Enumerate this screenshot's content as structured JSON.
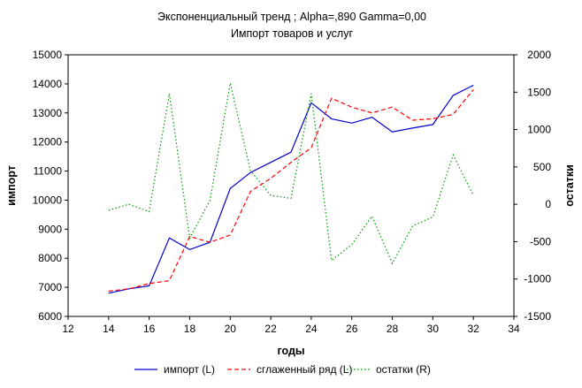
{
  "chart_data": {
    "type": "line",
    "title": "Экспоненциальный тренд ; Alpha=,890 Gamma=0,00",
    "subtitle": "Импорт товаров и услуг",
    "xlabel": "годы",
    "ylabel_left": "импорт",
    "ylabel_right": "остатки",
    "xlim": [
      12,
      34
    ],
    "x_ticks": [
      "12",
      "14",
      "16",
      "18",
      "20",
      "22",
      "24",
      "26",
      "28",
      "30",
      "32",
      "34"
    ],
    "ylim_left": [
      6000,
      15000
    ],
    "y_left_ticks": [
      "6000",
      "7000",
      "8000",
      "9000",
      "10000",
      "11000",
      "12000",
      "13000",
      "14000",
      "15000"
    ],
    "ylim_right": [
      -1500,
      2000
    ],
    "y_right_ticks": [
      "-1500",
      "-1000",
      "-500",
      "0",
      "500",
      "1000",
      "1500",
      "2000"
    ],
    "grid": false,
    "legend_position": "bottom",
    "x": [
      14,
      15,
      16,
      17,
      18,
      19,
      20,
      21,
      22,
      23,
      24,
      25,
      26,
      27,
      28,
      29,
      30,
      31,
      32
    ],
    "series": [
      {
        "name": "импорт (L)",
        "axis": "left",
        "color": "#0000cc",
        "style": "solid",
        "values": [
          6800,
          6950,
          7050,
          8700,
          8300,
          8550,
          10400,
          10950,
          11300,
          11650,
          13350,
          12800,
          12650,
          12850,
          12350,
          12480,
          12600,
          13600,
          13950
        ]
      },
      {
        "name": "сглаженный ряд (L)",
        "axis": "left",
        "color": "#ff0000",
        "style": "dashed",
        "values": [
          6870,
          6950,
          7130,
          7230,
          8750,
          8550,
          8800,
          10300,
          10750,
          11300,
          11800,
          13500,
          13200,
          13000,
          13200,
          12750,
          12800,
          12950,
          13800
        ]
      },
      {
        "name": "остатки (R)",
        "axis": "right",
        "color": "#009900",
        "style": "dotted",
        "values": [
          -80,
          0,
          -100,
          1480,
          -450,
          50,
          1620,
          450,
          120,
          80,
          1480,
          -750,
          -540,
          -160,
          -790,
          -290,
          -170,
          660,
          120
        ]
      }
    ]
  }
}
